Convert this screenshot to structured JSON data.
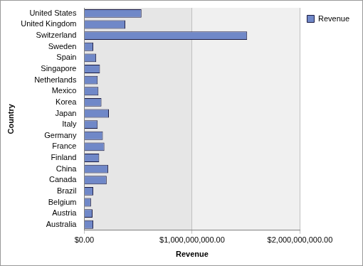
{
  "chart_data": {
    "type": "bar",
    "orientation": "horizontal",
    "x_label": "Revenue",
    "y_label": "Country",
    "categories": [
      "United States",
      "United Kingdom",
      "Switzerland",
      "Sweden",
      "Spain",
      "Singapore",
      "Netherlands",
      "Mexico",
      "Korea",
      "Japan",
      "Italy",
      "Germany",
      "France",
      "Finland",
      "China",
      "Canada",
      "Brazil",
      "Belgium",
      "Austria",
      "Australia"
    ],
    "series": [
      {
        "name": "Revenue",
        "color": "#7088c8",
        "values": [
          530000000,
          380000000,
          1510000000,
          83000000,
          110000000,
          145000000,
          124000000,
          131000000,
          159000000,
          228000000,
          124000000,
          172000000,
          186000000,
          138000000,
          221000000,
          207000000,
          83000000,
          62000000,
          76000000,
          83000000
        ]
      }
    ],
    "xlim": [
      0,
      2000000000
    ],
    "xticks": [
      {
        "value": 0,
        "label": "$0.00"
      },
      {
        "value": 1000000000,
        "label": "$1,000,000,000.00"
      },
      {
        "value": 2000000000,
        "label": "$2,000,000,000.00"
      }
    ],
    "grid": true,
    "legend": "top-right"
  }
}
